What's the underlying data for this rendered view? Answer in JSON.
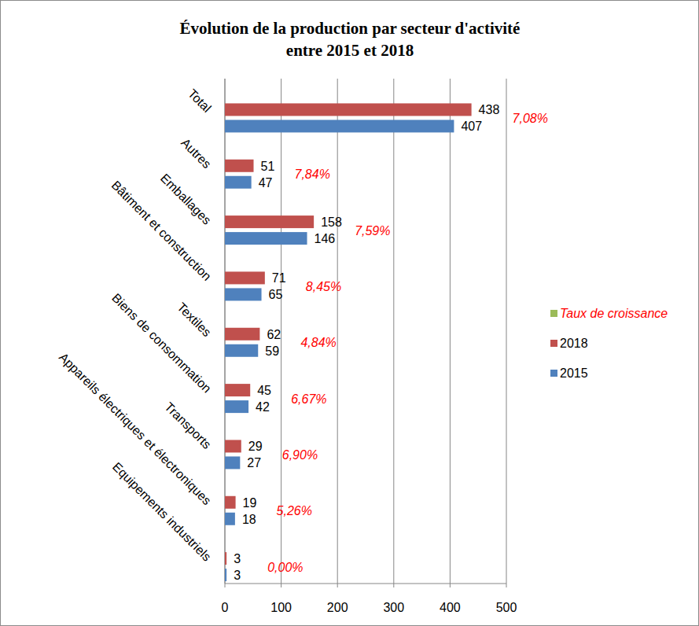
{
  "chart_data": {
    "type": "bar",
    "orientation": "horizontal",
    "title": "Évolution de la production par secteur d'activité",
    "subtitle": "entre 2015 et 2018",
    "categories": [
      "Total",
      "Autres",
      "Emballages",
      "Bâtiment et construction",
      "Textiles",
      "Biens de consommation",
      "Transports",
      "Appareils électriques et électroniques",
      "Equipements industriels"
    ],
    "series": [
      {
        "name": "2015",
        "color": "#4f81bd",
        "values": [
          407,
          47,
          146,
          65,
          59,
          42,
          27,
          18,
          3
        ]
      },
      {
        "name": "2018",
        "color": "#c0504d",
        "values": [
          438,
          51,
          158,
          71,
          62,
          45,
          29,
          19,
          3
        ]
      },
      {
        "name": "Taux de croissance",
        "type": "label",
        "color": "#9bbb59",
        "values": [
          7.08,
          7.84,
          7.59,
          8.45,
          4.84,
          6.67,
          6.9,
          5.26,
          0.0
        ],
        "value_labels": [
          "7,08%",
          "7,84%",
          "7,59%",
          "8,45%",
          "4,84%",
          "6,67%",
          "6,90%",
          "5,26%",
          "0,00%"
        ]
      }
    ],
    "xlim": [
      0,
      500
    ],
    "xticks": [
      0,
      100,
      200,
      300,
      400,
      500
    ],
    "grid": true,
    "data_labels": true,
    "legend": "right"
  }
}
